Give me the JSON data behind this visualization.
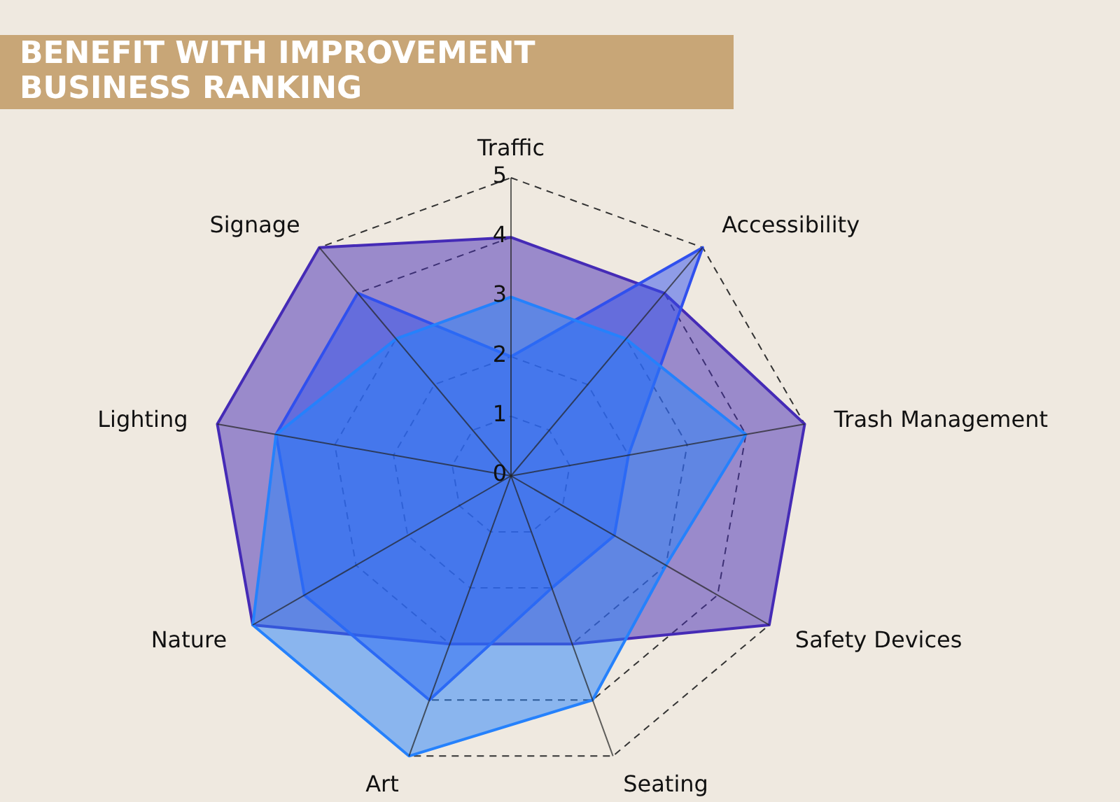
{
  "chart_data": {
    "type": "radar",
    "title": "BENEFIT WITH IMPROVEMENT\nBUSINESS RANKING",
    "categories": [
      "Traffic",
      "Accessibility",
      "Trash Management",
      "Safety Devices",
      "Seating",
      "Art",
      "Nature",
      "Lighting",
      "Signage"
    ],
    "ylim": [
      0,
      5
    ],
    "yticks": [
      0,
      1,
      2,
      3,
      4,
      5
    ],
    "grid": true,
    "line_style": "solid",
    "marker": "none",
    "series": [
      {
        "color": "#452bb6",
        "values": [
          4,
          4,
          5,
          5,
          3,
          3,
          5,
          5,
          5
        ]
      },
      {
        "color": "#3050ee",
        "values": [
          2,
          5,
          2,
          2,
          2,
          4,
          4,
          4,
          4
        ]
      },
      {
        "color": "#2581fc",
        "values": [
          3,
          3,
          4,
          3,
          4,
          5,
          5,
          4,
          3
        ]
      }
    ]
  }
}
